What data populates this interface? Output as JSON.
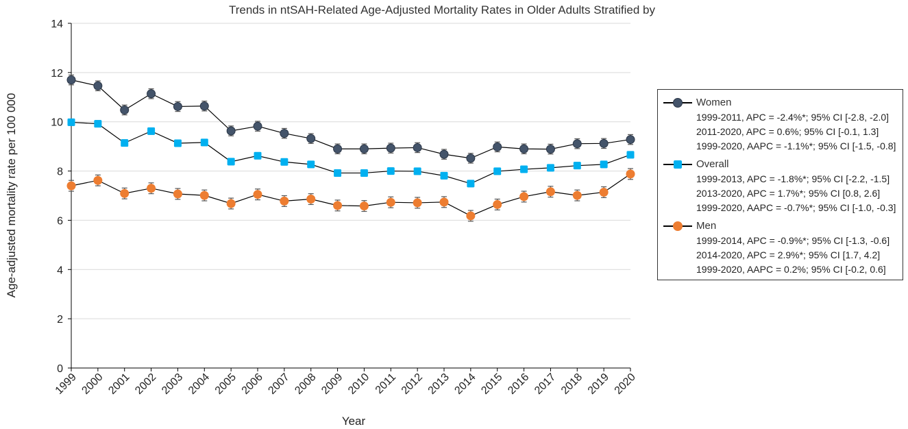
{
  "chart_data": {
    "type": "line",
    "title": "Trends in ntSAH-Related Age-Adjusted Mortality Rates in Older Adults Stratified by Sex",
    "xlabel": "Year",
    "ylabel": "Age-adjusted mortality rate per 100 000",
    "ylim": [
      0,
      14
    ],
    "yticks": [
      "0",
      "2",
      "4",
      "6",
      "8",
      "10",
      "12",
      "14"
    ],
    "grid": true,
    "legend_position": "right",
    "categories": [
      "1999",
      "2000",
      "2001",
      "2002",
      "2003",
      "2004",
      "2005",
      "2006",
      "2007",
      "2008",
      "2009",
      "2010",
      "2011",
      "2012",
      "2013",
      "2014",
      "2015",
      "2016",
      "2017",
      "2018",
      "2019",
      "2020"
    ],
    "series": [
      {
        "name": "Women",
        "color": "#44546A",
        "marker": "circle",
        "values": [
          11.7,
          11.46,
          10.48,
          11.14,
          10.62,
          10.64,
          9.63,
          9.82,
          9.53,
          9.32,
          8.9,
          8.9,
          8.93,
          8.95,
          8.68,
          8.52,
          8.98,
          8.9,
          8.89,
          9.11,
          9.12,
          9.28
        ],
        "error": 0.2,
        "stats": [
          "1999-2011, APC = -2.4%*; 95% CI [-2.8, -2.0]",
          "2011-2020, APC = 0.6%; 95% CI [-0.1, 1.3]",
          "1999-2020, AAPC = -1.1%*; 95% CI [-1.5, -0.8]"
        ]
      },
      {
        "name": "Overall",
        "color": "#00B0F0",
        "marker": "square",
        "values": [
          9.98,
          9.92,
          9.14,
          9.62,
          9.13,
          9.16,
          8.38,
          8.62,
          8.37,
          8.27,
          7.92,
          7.92,
          8.0,
          7.99,
          7.81,
          7.49,
          7.99,
          8.07,
          8.13,
          8.22,
          8.27,
          8.66
        ],
        "error": 0.13,
        "stats": [
          "1999-2013, APC = -1.8%*; 95% CI [-2.2, -1.5]",
          "2013-2020, APC = 1.7%*; 95% CI [0.8, 2.6]",
          "1999-2020, AAPC = -0.7%*; 95% CI [-1.0, -0.3]"
        ]
      },
      {
        "name": "Men",
        "color": "#ED7D31",
        "marker": "circle",
        "values": [
          7.4,
          7.62,
          7.09,
          7.3,
          7.07,
          7.01,
          6.68,
          7.05,
          6.78,
          6.86,
          6.6,
          6.58,
          6.73,
          6.71,
          6.74,
          6.18,
          6.64,
          6.96,
          7.16,
          7.01,
          7.14,
          7.88
        ],
        "error": 0.22,
        "stats": [
          "1999-2014, APC = -0.9%*; 95% CI [-1.3, -0.6]",
          "2014-2020, APC = 2.9%*; 95% CI [1.7, 4.2]",
          "1999-2020, AAPC = 0.2%; 95% CI [-0.2, 0.6]"
        ]
      }
    ]
  }
}
